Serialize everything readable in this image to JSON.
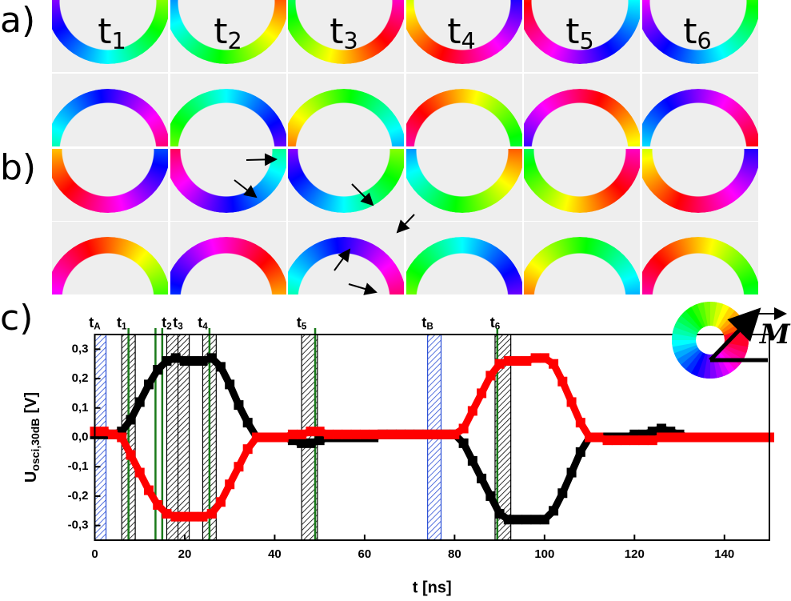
{
  "panel_labels": [
    "a)",
    "b)",
    "c)"
  ],
  "time_labels": [
    {
      "main": "t",
      "sub": "1"
    },
    {
      "main": "t",
      "sub": "2"
    },
    {
      "main": "t",
      "sub": "3"
    },
    {
      "main": "t",
      "sub": "4"
    },
    {
      "main": "t",
      "sub": "5"
    },
    {
      "main": "t",
      "sub": "6"
    }
  ],
  "vector_label": "M",
  "chart_data": {
    "type": "scatter",
    "x_label": "t [ns]",
    "y_label": {
      "main": "U",
      "sub": "osci,30dB",
      "suffix": "[V]"
    },
    "xlim": [
      0,
      150
    ],
    "xticks": [
      0,
      20,
      40,
      60,
      80,
      100,
      120,
      140
    ],
    "ylim": [
      -0.35,
      0.35
    ],
    "yticks": [
      {
        "value": -0.3,
        "label": "-0,3"
      },
      {
        "value": -0.2,
        "label": "-0,2"
      },
      {
        "value": -0.1,
        "label": "-0,1"
      },
      {
        "value": 0,
        "label": "0,0"
      },
      {
        "value": 0.1,
        "label": "0,1"
      },
      {
        "value": 0.2,
        "label": "0,2"
      },
      {
        "value": 0.3,
        "label": "0,3"
      }
    ],
    "x": [
      0,
      2,
      4,
      6,
      8,
      10,
      12,
      14,
      16,
      18,
      20,
      22,
      24,
      26,
      28,
      30,
      32,
      34,
      36,
      38,
      40,
      42,
      44,
      46,
      48,
      50,
      52,
      54,
      56,
      58,
      60,
      62,
      64,
      66,
      68,
      70,
      72,
      74,
      76,
      78,
      80,
      82,
      84,
      86,
      88,
      90,
      92,
      94,
      96,
      98,
      100,
      102,
      104,
      106,
      108,
      110,
      112,
      114,
      116,
      118,
      120,
      122,
      124,
      126,
      128,
      130,
      132,
      134,
      136,
      138,
      140,
      142,
      144,
      146,
      148,
      150
    ],
    "series": [
      {
        "color": "#000000",
        "values": [
          0.01,
          0.01,
          0.01,
          0.02,
          0.06,
          0.12,
          0.18,
          0.23,
          0.26,
          0.27,
          0.26,
          0.26,
          0.26,
          0.27,
          0.24,
          0.18,
          0.11,
          0.05,
          0,
          0,
          0,
          0,
          -0.01,
          -0.02,
          -0.02,
          -0.01,
          0,
          0,
          0,
          0,
          0,
          0,
          0.01,
          0.01,
          0.01,
          0.01,
          0.01,
          0.01,
          0.01,
          0.01,
          0.01,
          -0.02,
          -0.08,
          -0.14,
          -0.2,
          -0.26,
          -0.28,
          -0.28,
          -0.28,
          -0.28,
          -0.28,
          -0.25,
          -0.19,
          -0.12,
          -0.05,
          0,
          0,
          0,
          0,
          0,
          0.01,
          0.01,
          0.02,
          0.03,
          0.02,
          0.01,
          0,
          0,
          0,
          0,
          0,
          0,
          0,
          0,
          0,
          0
        ]
      },
      {
        "color": "#ff0000",
        "values": [
          0.02,
          0.02,
          0.01,
          0,
          -0.06,
          -0.12,
          -0.18,
          -0.23,
          -0.26,
          -0.27,
          -0.27,
          -0.27,
          -0.27,
          -0.26,
          -0.22,
          -0.16,
          -0.1,
          -0.04,
          0,
          0,
          0,
          0,
          0.01,
          0.01,
          0.02,
          0.02,
          0.01,
          0.01,
          0.01,
          0.01,
          0.01,
          0.01,
          0.01,
          0.01,
          0.01,
          0.01,
          0.01,
          0.01,
          0.01,
          0.01,
          0.01,
          0.03,
          0.09,
          0.15,
          0.21,
          0.25,
          0.26,
          0.26,
          0.26,
          0.27,
          0.27,
          0.25,
          0.19,
          0.12,
          0.05,
          0,
          0,
          -0.01,
          -0.01,
          -0.01,
          -0.01,
          -0.01,
          -0.01,
          0,
          0,
          0,
          0,
          0,
          0,
          0,
          0,
          0,
          0,
          0,
          0,
          0
        ]
      }
    ],
    "windows": [
      {
        "label": {
          "main": "t",
          "sub": "A"
        },
        "x": [
          0,
          2.5
        ],
        "color": "#2b4fd6"
      },
      {
        "label": {
          "main": "t",
          "sub": "1"
        },
        "x": [
          6,
          9
        ],
        "color": "#000000"
      },
      {
        "label": {
          "main": "t",
          "sub": "2"
        },
        "x": [
          16,
          19
        ],
        "color": "#000000"
      },
      {
        "label": {
          "main": "t",
          "sub": "3"
        },
        "x": [
          18.5,
          21
        ],
        "color": "#000000"
      },
      {
        "label": {
          "main": "t",
          "sub": "4"
        },
        "x": [
          24,
          27
        ],
        "color": "#000000"
      },
      {
        "label": {
          "main": "t",
          "sub": "5"
        },
        "x": [
          46,
          49.5
        ],
        "color": "#000000"
      },
      {
        "label": {
          "main": "t",
          "sub": "B"
        },
        "x": [
          74,
          77
        ],
        "color": "#2b4fd6"
      },
      {
        "label": {
          "main": "t",
          "sub": "6"
        },
        "x": [
          89,
          92.5
        ],
        "color": "#000000"
      }
    ],
    "markers": [
      7.5,
      13.5,
      15,
      25.5,
      49,
      89.5
    ],
    "marker_color": "#1a7a1a"
  }
}
